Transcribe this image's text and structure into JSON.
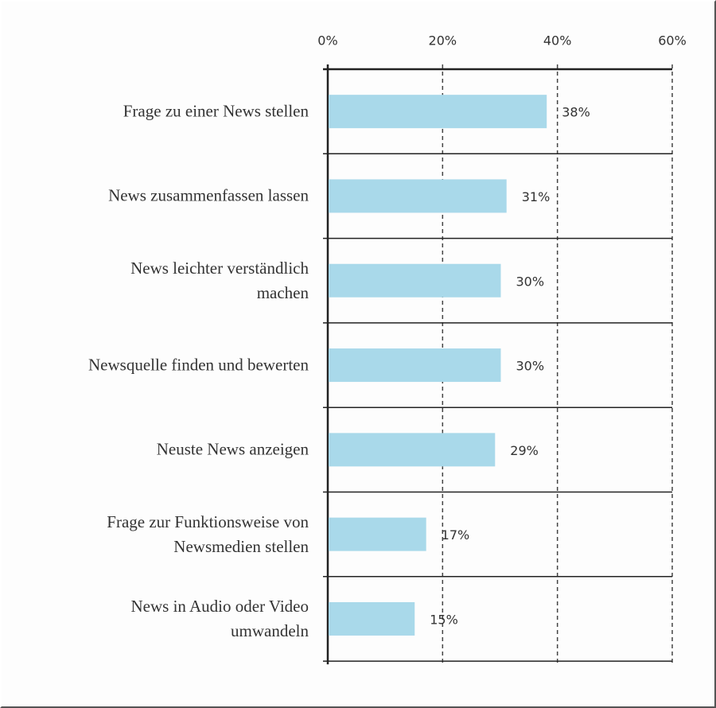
{
  "chart_data": {
    "type": "bar",
    "orientation": "horizontal",
    "categories": [
      "Frage zu einer News stellen",
      "News zusammenfassen lassen",
      "News leichter verständlich\nmachen",
      "Newsquelle finden und bewerten",
      "Neuste News anzeigen",
      "Frage zur Funktionsweise von\nNewsmedien stellen",
      "News in Audio oder Video\numwandeln"
    ],
    "values": [
      38,
      31,
      30,
      30,
      29,
      17,
      15
    ],
    "value_labels": [
      "38%",
      "31%",
      "30%",
      "30%",
      "29%",
      "17%",
      "15%"
    ],
    "color": "#a9d9ea",
    "xlim": [
      0,
      60
    ],
    "xticks": [
      {
        "value": 0,
        "label": "0%"
      },
      {
        "value": 20,
        "label": "20%"
      },
      {
        "value": 40,
        "label": "40%"
      },
      {
        "value": 60,
        "label": "60%"
      }
    ],
    "grid": true
  }
}
